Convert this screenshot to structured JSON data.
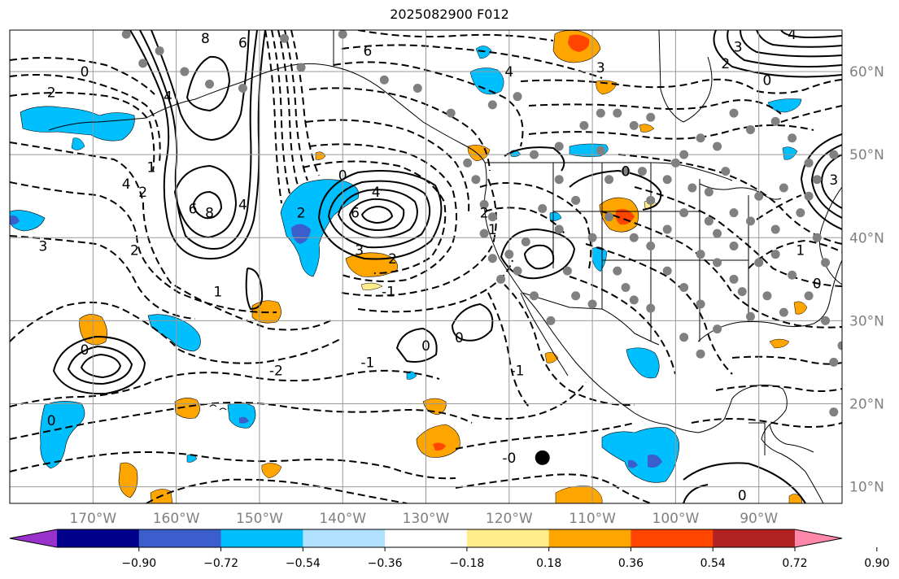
{
  "title": "2025082900 F012",
  "map": {
    "lon_range": [
      -180,
      -80
    ],
    "lat_range": [
      8,
      65
    ],
    "lon_ticks": [
      {
        "lon": -170,
        "label": "170°W"
      },
      {
        "lon": -160,
        "label": "160°W"
      },
      {
        "lon": -150,
        "label": "150°W"
      },
      {
        "lon": -140,
        "label": "140°W"
      },
      {
        "lon": -130,
        "label": "130°W"
      },
      {
        "lon": -120,
        "label": "120°W"
      },
      {
        "lon": -110,
        "label": "110°W"
      },
      {
        "lon": -100,
        "label": "100°W"
      },
      {
        "lon": -90,
        "label": "90°W"
      }
    ],
    "lat_ticks": [
      {
        "lat": 60,
        "label": "60°N"
      },
      {
        "lat": 50,
        "label": "50°N"
      },
      {
        "lat": 40,
        "label": "40°N"
      },
      {
        "lat": 30,
        "label": "30°N"
      },
      {
        "lat": 20,
        "label": "20°N"
      },
      {
        "lat": 10,
        "label": "10°N"
      }
    ],
    "grid": true,
    "tick_label_color": "#808080",
    "marker": {
      "lon": -116,
      "lat": 13.5
    },
    "station_color": "#808080",
    "stations": [
      [
        -166,
        64.5
      ],
      [
        -164,
        61
      ],
      [
        -162,
        62.5
      ],
      [
        -159,
        60
      ],
      [
        -156,
        58.5
      ],
      [
        -152,
        58
      ],
      [
        -147,
        64
      ],
      [
        -145,
        60.5
      ],
      [
        -140,
        64.5
      ],
      [
        -135,
        59
      ],
      [
        -131,
        58
      ],
      [
        -127,
        55
      ],
      [
        -125,
        49
      ],
      [
        -124,
        47
      ],
      [
        -123,
        44
      ],
      [
        -122,
        42.5
      ],
      [
        -123,
        40.5
      ],
      [
        -122,
        37.5
      ],
      [
        -121,
        35
      ],
      [
        -119,
        36
      ],
      [
        -118,
        39.5
      ],
      [
        -116,
        43.5
      ],
      [
        -114,
        47
      ],
      [
        -117,
        50
      ],
      [
        -114,
        51
      ],
      [
        -119,
        57
      ],
      [
        -122,
        56
      ],
      [
        -111,
        53.5
      ],
      [
        -109,
        50.5
      ],
      [
        -107,
        55
      ],
      [
        -105,
        53.5
      ],
      [
        -103,
        54.5
      ],
      [
        -99,
        50
      ],
      [
        -97,
        52
      ],
      [
        -95,
        51
      ],
      [
        -93,
        55
      ],
      [
        -91,
        53
      ],
      [
        -88,
        54
      ],
      [
        -86,
        52
      ],
      [
        -84,
        49
      ],
      [
        -112,
        44.5
      ],
      [
        -110,
        40
      ],
      [
        -108,
        42.5
      ],
      [
        -105,
        40
      ],
      [
        -103,
        44.5
      ],
      [
        -101,
        41
      ],
      [
        -99,
        43
      ],
      [
        -97,
        38
      ],
      [
        -95,
        40.5
      ],
      [
        -93,
        39
      ],
      [
        -91,
        42
      ],
      [
        -88,
        41
      ],
      [
        -85,
        43
      ],
      [
        -83,
        40
      ],
      [
        -82,
        37
      ],
      [
        -86,
        35.5
      ],
      [
        -89,
        33
      ],
      [
        -91,
        30.5
      ],
      [
        -93,
        35
      ],
      [
        -95,
        37
      ],
      [
        -97,
        32
      ],
      [
        -99,
        34
      ],
      [
        -101,
        36
      ],
      [
        -103,
        31.5
      ],
      [
        -105,
        32.5
      ],
      [
        -107,
        36
      ],
      [
        -110,
        32
      ],
      [
        -113,
        36
      ],
      [
        -115,
        30
      ],
      [
        -117,
        33
      ],
      [
        -120,
        38
      ],
      [
        -109,
        55
      ],
      [
        -97,
        26
      ],
      [
        -99,
        28
      ],
      [
        -95,
        29
      ],
      [
        -92,
        33.5
      ],
      [
        -87,
        31
      ],
      [
        -84,
        33
      ],
      [
        -82,
        30
      ],
      [
        -80,
        27
      ],
      [
        -81,
        25
      ],
      [
        -81,
        19
      ],
      [
        -106,
        34
      ],
      [
        -103,
        39
      ],
      [
        -101,
        47
      ],
      [
        -98,
        46
      ],
      [
        -96,
        45.5
      ],
      [
        -94,
        48
      ],
      [
        -90,
        45
      ],
      [
        -87,
        46
      ],
      [
        -84,
        45
      ],
      [
        -83,
        47
      ],
      [
        -81,
        50
      ],
      [
        -114,
        41
      ],
      [
        -112,
        33
      ],
      [
        -108,
        47
      ],
      [
        -106,
        48
      ],
      [
        -104,
        48
      ],
      [
        -100,
        49
      ],
      [
        -96,
        42
      ],
      [
        -93,
        43
      ],
      [
        -90,
        37
      ],
      [
        -88,
        38
      ]
    ],
    "colorbar": {
      "colors": [
        "#9932cc",
        "#00008b",
        "#3a5fcd",
        "#00bfff",
        "#b0e2ff",
        "#ffffff",
        "#ffec8b",
        "#ffa500",
        "#ff4500",
        "#b22222",
        "#ff88aa"
      ],
      "tick_labels": [
        "−0.90",
        "−0.72",
        "−0.54",
        "−0.36",
        "−0.18",
        "0.18",
        "0.36",
        "0.54",
        "0.72",
        "0.90"
      ]
    },
    "contour_labels": [
      {
        "text": "0",
        "lon": -171,
        "lat": 60
      },
      {
        "text": "2",
        "lon": -175,
        "lat": 57.5
      },
      {
        "text": "4",
        "lon": -166,
        "lat": 46.5
      },
      {
        "text": "3",
        "lon": -176,
        "lat": 39
      },
      {
        "text": "8",
        "lon": -156.5,
        "lat": 64
      },
      {
        "text": "6",
        "lon": -152,
        "lat": 63.5
      },
      {
        "text": "6",
        "lon": -158,
        "lat": 43.5
      },
      {
        "text": "8",
        "lon": -156,
        "lat": 43
      },
      {
        "text": "4",
        "lon": -161,
        "lat": 57
      },
      {
        "text": "1",
        "lon": -163,
        "lat": 48.5
      },
      {
        "text": "2",
        "lon": -164,
        "lat": 45.5
      },
      {
        "text": "4",
        "lon": -152,
        "lat": 44
      },
      {
        "text": "2",
        "lon": -145,
        "lat": 43
      },
      {
        "text": "6",
        "lon": -138.5,
        "lat": 43
      },
      {
        "text": "4",
        "lon": -136,
        "lat": 45.5
      },
      {
        "text": "3",
        "lon": -138,
        "lat": 38.5
      },
      {
        "text": "2",
        "lon": -134,
        "lat": 37.5
      },
      {
        "text": "0",
        "lon": -140,
        "lat": 47.5
      },
      {
        "text": "-1",
        "lon": -134.5,
        "lat": 33.5
      },
      {
        "text": "1",
        "lon": -155,
        "lat": 33.5
      },
      {
        "text": "2",
        "lon": -165,
        "lat": 38.5
      },
      {
        "text": "6",
        "lon": -137,
        "lat": 62.5
      },
      {
        "text": "4",
        "lon": -120,
        "lat": 60
      },
      {
        "text": "3",
        "lon": -109,
        "lat": 60.5
      },
      {
        "text": "3",
        "lon": -92.5,
        "lat": 63
      },
      {
        "text": "2",
        "lon": -94,
        "lat": 61
      },
      {
        "text": "0",
        "lon": -89,
        "lat": 59
      },
      {
        "text": "4",
        "lon": -86,
        "lat": 64.5
      },
      {
        "text": "0",
        "lon": -130,
        "lat": 27
      },
      {
        "text": "0",
        "lon": -126,
        "lat": 28
      },
      {
        "text": "-2",
        "lon": -148,
        "lat": 24
      },
      {
        "text": "-1",
        "lon": -137,
        "lat": 25
      },
      {
        "text": "0",
        "lon": -171,
        "lat": 26.5
      },
      {
        "text": "0",
        "lon": -175,
        "lat": 18
      },
      {
        "text": "-0",
        "lon": -120,
        "lat": 13.5
      },
      {
        "text": "0",
        "lon": -92,
        "lat": 9
      },
      {
        "text": "-1",
        "lon": -119,
        "lat": 24
      },
      {
        "text": "2",
        "lon": -123,
        "lat": 43
      },
      {
        "text": "1",
        "lon": -122,
        "lat": 41
      },
      {
        "text": "0",
        "lon": -106,
        "lat": 48
      },
      {
        "text": "0",
        "lon": -83,
        "lat": 34.5
      },
      {
        "text": "1",
        "lon": -85,
        "lat": 38.5
      },
      {
        "text": "3",
        "lon": -81,
        "lat": 47
      }
    ]
  }
}
